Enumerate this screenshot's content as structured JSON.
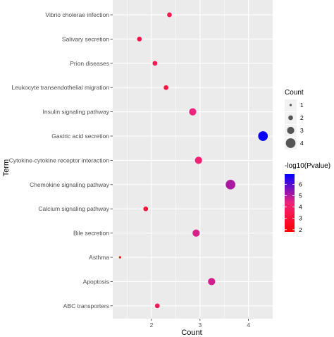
{
  "chart_data": {
    "type": "scatter",
    "xlabel": "Count",
    "ylabel": "Term",
    "xlim": [
      1.2,
      4.5
    ],
    "x_ticks": [
      "2",
      "3",
      "4"
    ],
    "grid": true,
    "terms": [
      "Vibrio cholerae infection",
      "Salivary secretion",
      "Prion diseases",
      "Leukocyte transendothelial migration",
      "Insulin signaling pathway",
      "Gastric acid secretion",
      "Cytokine-cytokine receptor interaction",
      "Chemokine signaling pathway",
      "Calcium signaling pathway",
      "Bile secretion",
      "Asthma",
      "Apoptosis",
      "ABC transporters"
    ],
    "points": [
      {
        "term": "Vibrio cholerae infection",
        "x": 2.37,
        "count": 2,
        "neglog10p": 3.5
      },
      {
        "term": "Salivary secretion",
        "x": 1.75,
        "count": 2,
        "neglog10p": 3.3
      },
      {
        "term": "Prion diseases",
        "x": 2.07,
        "count": 2,
        "neglog10p": 3.5
      },
      {
        "term": "Leukocyte transendothelial migration",
        "x": 2.3,
        "count": 2,
        "neglog10p": 3.2
      },
      {
        "term": "Insulin signaling pathway",
        "x": 2.85,
        "count": 3,
        "neglog10p": 4.4
      },
      {
        "term": "Gastric acid secretion",
        "x": 4.3,
        "count": 4,
        "neglog10p": 6.8
      },
      {
        "term": "Cytokine-cytokine receptor interaction",
        "x": 2.97,
        "count": 3,
        "neglog10p": 4.2
      },
      {
        "term": "Chemokine signaling pathway",
        "x": 3.63,
        "count": 4,
        "neglog10p": 5.1
      },
      {
        "term": "Calcium signaling pathway",
        "x": 1.88,
        "count": 2,
        "neglog10p": 3.0
      },
      {
        "term": "Bile secretion",
        "x": 2.92,
        "count": 3,
        "neglog10p": 4.6
      },
      {
        "term": "Asthma",
        "x": 1.35,
        "count": 1,
        "neglog10p": 2.0
      },
      {
        "term": "Apoptosis",
        "x": 3.24,
        "count": 3,
        "neglog10p": 4.7
      },
      {
        "term": "ABC transporters",
        "x": 2.12,
        "count": 2,
        "neglog10p": 3.6
      }
    ],
    "legend": {
      "placement": "right",
      "size_title": "Count",
      "size_values": [
        "1",
        "2",
        "3",
        "4"
      ],
      "color_title": "-log10(Pvalue)",
      "color_values": [
        "2",
        "3",
        "4",
        "5",
        "6"
      ],
      "color_low": "#ff0000",
      "color_high": "#0000ff",
      "color_range": [
        1.8,
        6.9
      ]
    },
    "panel_background": "#ebebeb",
    "grid_color": "#ffffff"
  }
}
